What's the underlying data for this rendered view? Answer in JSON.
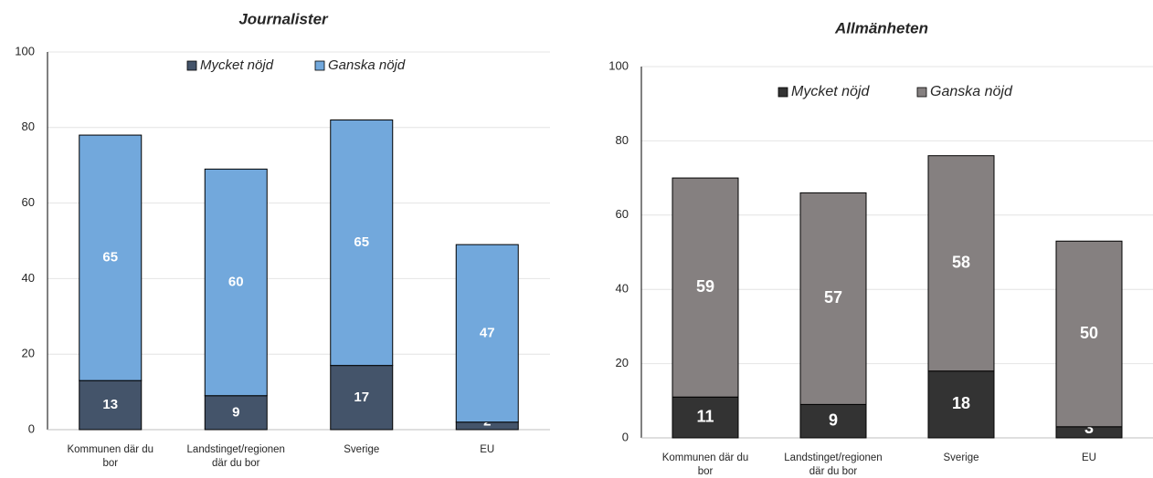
{
  "chart_data": [
    {
      "type": "stacked_bar",
      "title": "Journalister",
      "categories": [
        "Kommunen där du bor",
        "Landstinget/regionen där du bor",
        "Sverige",
        "EU"
      ],
      "series": [
        {
          "name": "Mycket nöjd",
          "color": "#44546a",
          "values": [
            13,
            9,
            17,
            2
          ]
        },
        {
          "name": "Ganska nöjd",
          "color": "#72a8dc",
          "values": [
            65,
            60,
            65,
            47
          ]
        }
      ],
      "ylim": [
        0,
        100
      ],
      "yticks": [
        0,
        20,
        40,
        60,
        80,
        100
      ],
      "grid": true,
      "legend": "top"
    },
    {
      "type": "stacked_bar",
      "title": "Allmänheten",
      "categories": [
        "Kommunen där du bor",
        "Landstinget/regionen där du bor",
        "Sverige",
        "EU"
      ],
      "series": [
        {
          "name": "Mycket nöjd",
          "color": "#333333",
          "values": [
            11,
            9,
            18,
            3
          ]
        },
        {
          "name": "Ganska nöjd",
          "color": "#858080",
          "values": [
            59,
            57,
            58,
            50
          ]
        }
      ],
      "ylim": [
        0,
        100
      ],
      "yticks": [
        0,
        20,
        40,
        60,
        80,
        100
      ],
      "grid": true,
      "legend": "top"
    }
  ]
}
